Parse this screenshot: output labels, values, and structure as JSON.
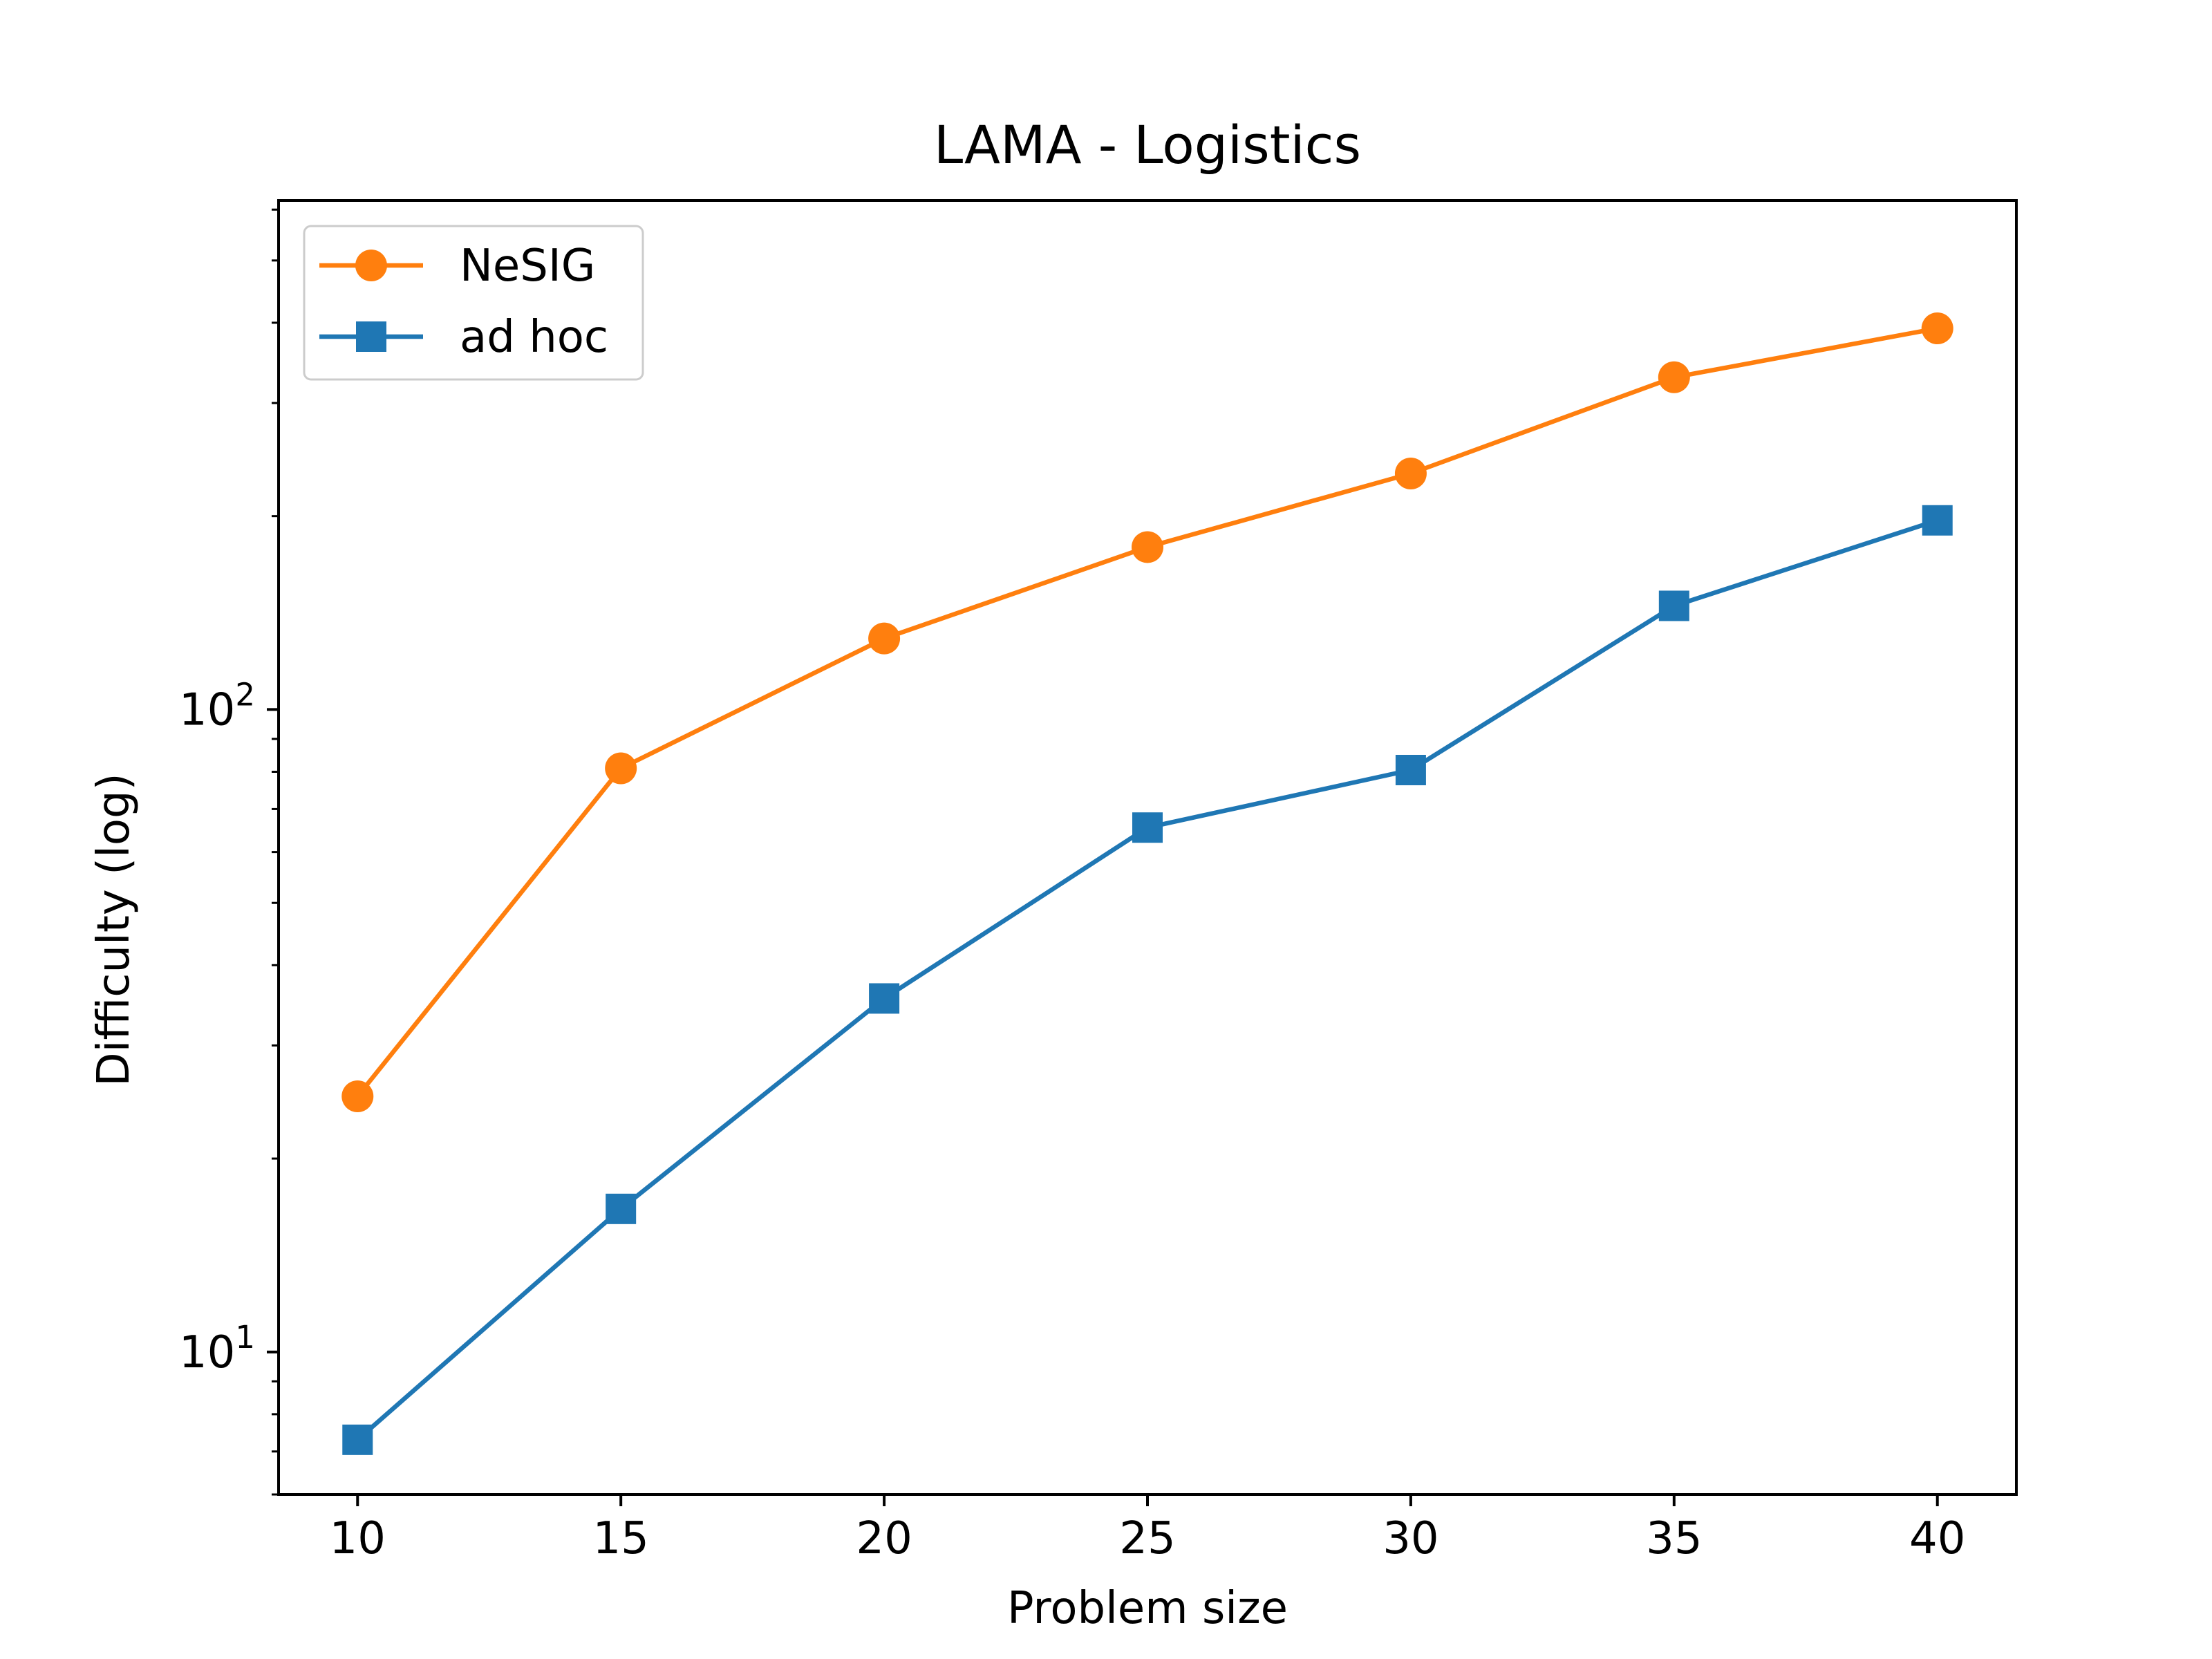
{
  "chart_data": {
    "type": "line",
    "title": "LAMA - Logistics",
    "xlabel": "Problem size",
    "ylabel": "Difficulty (log)",
    "yscale": "log",
    "xlim": [
      8.5,
      41.5
    ],
    "ylim": [
      6.0,
      620
    ],
    "x": [
      10,
      15,
      20,
      25,
      30,
      35,
      40
    ],
    "xticks": [
      "10",
      "15",
      "20",
      "25",
      "30",
      "35",
      "40"
    ],
    "yticks_major": [
      {
        "value": 10,
        "base": "10",
        "exp": "1"
      },
      {
        "value": 100,
        "base": "10",
        "exp": "2"
      }
    ],
    "grid": false,
    "legend": "top-left",
    "series": [
      {
        "name": "NeSIG",
        "color": "#ff7f0e",
        "marker": "circle",
        "values": [
          25,
          81,
          129,
          179,
          233,
          329,
          392
        ]
      },
      {
        "name": "ad hoc",
        "color": "#1f77b4",
        "marker": "square",
        "values": [
          7.3,
          16.7,
          35.5,
          65.5,
          80.5,
          145,
          197
        ]
      }
    ]
  }
}
